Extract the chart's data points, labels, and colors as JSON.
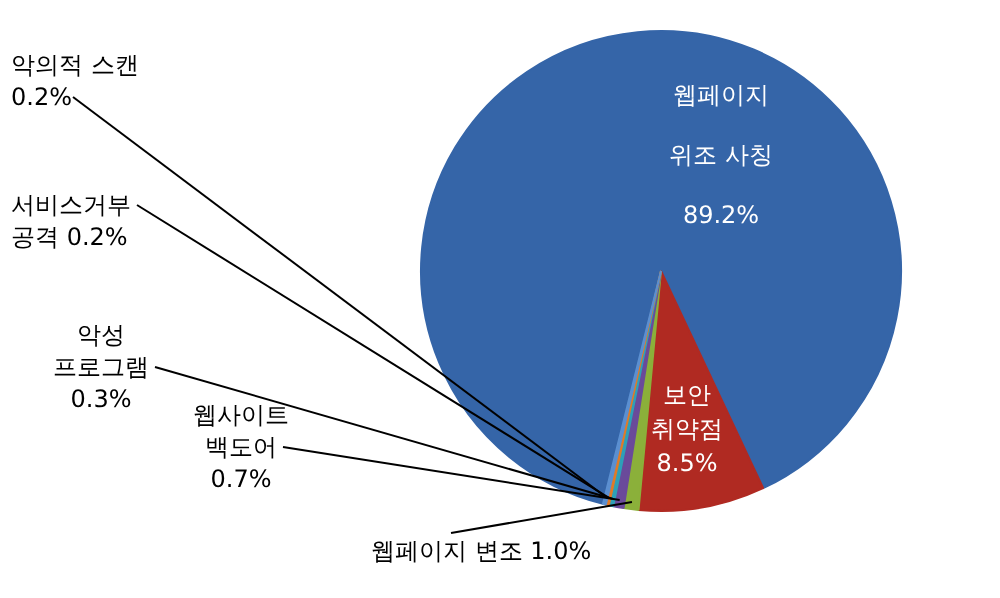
{
  "chart_data": {
    "type": "pie",
    "categories": [
      "웹페이지\n위조 사칭",
      "보안\n취약점",
      "웹페이지 변조",
      "웹사이트\n백도어",
      "악성\n프로그램",
      "서비스거부\n공격",
      "악의적 스캔"
    ],
    "values": [
      89.2,
      8.5,
      1.0,
      0.7,
      0.3,
      0.2,
      0.2
    ],
    "value_labels": [
      "89.2%",
      "8.5%",
      "1.0%",
      "0.7%",
      "0.3%",
      "0.2%",
      "0.2%"
    ],
    "colors": [
      "#3565a8",
      "#b02a22",
      "#8bb03a",
      "#6a4a9a",
      "#2ea0b8",
      "#e07a28",
      "#5b8fd0"
    ]
  }
}
